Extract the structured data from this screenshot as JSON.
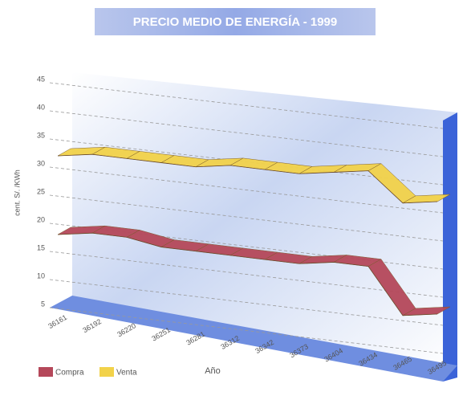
{
  "chart_data": {
    "type": "line3d",
    "title": "PRECIO MEDIO DE ENERGÍA - 1999",
    "y_label": "cent. S/. /KWh",
    "x_label": "Año",
    "categories": [
      "36161",
      "36192",
      "36220",
      "36251",
      "36281",
      "36312",
      "36342",
      "36373",
      "36404",
      "36434",
      "36465",
      "36495"
    ],
    "series": [
      {
        "name": "Compra",
        "color": "#b5485a",
        "values": [
          18,
          19,
          19,
          18,
          18,
          18,
          18,
          18,
          19,
          19,
          11,
          12
        ]
      },
      {
        "name": "Venta",
        "color": "#f2d24a",
        "values": [
          32,
          33,
          33,
          33,
          33,
          34,
          34,
          34,
          35,
          36,
          31,
          32
        ]
      }
    ],
    "ylim": [
      5,
      45
    ],
    "yticks": [
      5,
      10,
      15,
      20,
      25,
      30,
      35,
      40,
      45
    ],
    "grid": true,
    "legend": "bottom-left"
  }
}
